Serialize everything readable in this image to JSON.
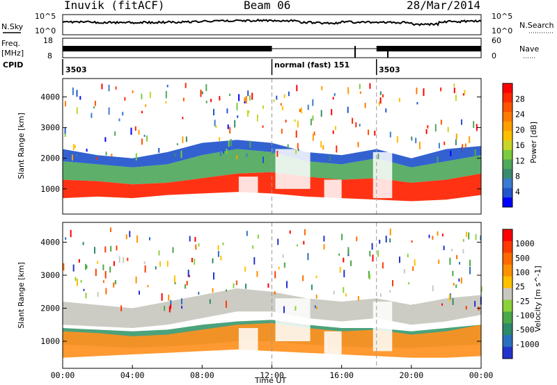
{
  "header": {
    "station": "Inuvik (fitACF)",
    "beam": "Beam 06",
    "date": "28/Mar/2014"
  },
  "strip": {
    "nsky_label": "N.Sky",
    "nsky_ticks": [
      "10^5",
      "10^0"
    ],
    "nsearch_label": "N.Search",
    "nsearch_ticks": [
      "10^5",
      "10^0"
    ],
    "freq_label": "Freq.",
    "freq_unit": "[MHz]",
    "freq_ticks": [
      "18",
      "8"
    ],
    "nave_label": "Nave",
    "nave_ticks": [
      "60",
      "0"
    ],
    "cpid_label": "CPID",
    "cpid_segments": [
      "3503",
      "normal (fast) 151",
      "3503"
    ],
    "mode_change_hours": [
      12.0,
      18.0
    ]
  },
  "chart_data": [
    {
      "type": "heatmap",
      "panel": "power",
      "ylabel": "Slant Range [km]",
      "yticks": [
        1000,
        2000,
        3000,
        4000
      ],
      "ylim": [
        180,
        4600
      ],
      "xlim": [
        0,
        24
      ],
      "colorbar": {
        "label": "Power [dB]",
        "ticks": [
          "4",
          "8",
          "12",
          "16",
          "20",
          "24",
          "28"
        ],
        "colors": [
          "#0000ff",
          "#2255cc",
          "#3a7ad0",
          "#3c8a6e",
          "#4fa85c",
          "#7ccb3c",
          "#c8d62a",
          "#ffc000",
          "#ff9f00",
          "#ff7a00",
          "#ff5500",
          "#ff2a00",
          "#ff0000"
        ]
      },
      "bands": [
        {
          "name": "core",
          "color": "#ff2200",
          "lo": [
            700,
            750,
            700,
            800,
            850,
            900,
            850,
            750,
            700,
            650,
            600,
            650,
            800
          ],
          "hi": [
            1300,
            1250,
            1150,
            1200,
            1350,
            1500,
            1550,
            1400,
            1300,
            1350,
            1200,
            1300,
            1500
          ]
        },
        {
          "name": "mid",
          "color": "#4fa85c",
          "lo": [
            1300,
            1250,
            1150,
            1200,
            1350,
            1500,
            1550,
            1400,
            1300,
            1350,
            1200,
            1300,
            1500
          ],
          "hi": [
            1900,
            1800,
            1700,
            1800,
            2100,
            2300,
            2200,
            1900,
            1800,
            2000,
            1700,
            1900,
            2100
          ]
        },
        {
          "name": "outer",
          "color": "#2255cc",
          "lo": [
            1900,
            1800,
            1700,
            1800,
            2100,
            2300,
            2200,
            1900,
            1800,
            2000,
            1700,
            1900,
            2100
          ],
          "hi": [
            2300,
            2100,
            2000,
            2200,
            2500,
            2600,
            2500,
            2200,
            2100,
            2300,
            2000,
            2300,
            2400
          ]
        }
      ]
    },
    {
      "type": "heatmap",
      "panel": "velocity",
      "ylabel": "Slant Range [km]",
      "yticks": [
        1000,
        2000,
        3000,
        4000
      ],
      "ylim": [
        180,
        4600
      ],
      "xlim": [
        0,
        24
      ],
      "colorbar": {
        "label": "Velocity [m s^-1]",
        "ticks": [
          "1000",
          "500",
          "100",
          "25",
          "-25",
          "-100",
          "-500",
          "-1000"
        ],
        "colors": [
          "#2233cc",
          "#2b6fbf",
          "#2d8a6a",
          "#4aa848",
          "#8bd13a",
          "#c8c8c0",
          "#ffc000",
          "#ff9000",
          "#ff6a00",
          "#ff3a00",
          "#ff0000"
        ]
      },
      "bands": [
        {
          "name": "near",
          "color": "#ff9020",
          "lo": [
            500,
            550,
            600,
            650,
            700,
            750,
            700,
            650,
            600,
            550,
            500,
            500,
            550
          ],
          "hi": [
            1300,
            1250,
            1150,
            1200,
            1350,
            1500,
            1550,
            1400,
            1300,
            1350,
            1200,
            1300,
            1500
          ]
        },
        {
          "name": "mid",
          "color": "#3c9a70",
          "lo": [
            900,
            850,
            800,
            850,
            900,
            1000,
            1000,
            900,
            850,
            800,
            800,
            850,
            900
          ],
          "hi": [
            1400,
            1350,
            1300,
            1350,
            1500,
            1600,
            1650,
            1500,
            1400,
            1400,
            1300,
            1400,
            1500
          ]
        },
        {
          "name": "far",
          "color": "#c8c8c0",
          "lo": [
            1500,
            1450,
            1400,
            1500,
            1700,
            1900,
            1900,
            1700,
            1600,
            1700,
            1500,
            1600,
            1800
          ],
          "hi": [
            2200,
            2100,
            2000,
            2200,
            2400,
            2600,
            2500,
            2300,
            2200,
            2300,
            2100,
            2300,
            2400
          ]
        }
      ]
    }
  ],
  "xaxis": {
    "label": "Time UT",
    "ticks": [
      "00:00",
      "04:00",
      "08:00",
      "12:00",
      "16:00",
      "20:00",
      "00:00"
    ]
  }
}
